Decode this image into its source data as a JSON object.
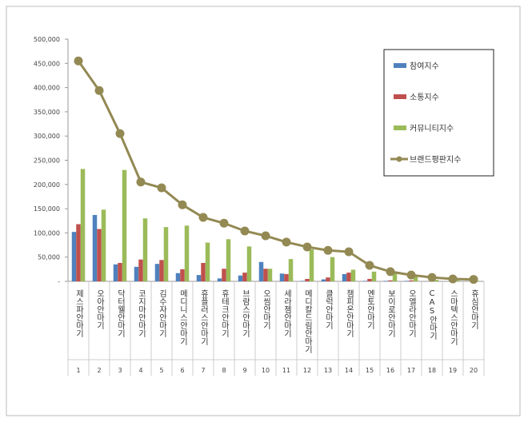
{
  "chart_data": {
    "type": "bar-line",
    "categories": [
      "제스파안마기",
      "오아안마기",
      "닥터웰안마기",
      "코지마안마기",
      "김수자안마기",
      "메디니스안마기",
      "휴플러스안마기",
      "휴테크안마기",
      "브람스안마기",
      "오씸안마기",
      "세라젬안마기",
      "메디칼드림안마기",
      "클럭안마기",
      "챔피온안마기",
      "멘토안마기",
      "보이로안마기",
      "오엘라안마기",
      "CAS안마기",
      "스마텍스안마기",
      "휴심안마기"
    ],
    "ranks": [
      1,
      2,
      3,
      4,
      5,
      6,
      7,
      8,
      9,
      10,
      11,
      12,
      13,
      14,
      15,
      16,
      17,
      18,
      19,
      20
    ],
    "series": [
      {
        "name": "참여지수",
        "color": "#4f81bd",
        "kind": "bar",
        "values": [
          102000,
          137000,
          35000,
          30000,
          36000,
          17000,
          13000,
          6000,
          12000,
          40000,
          16000,
          1000,
          4000,
          15000,
          1000,
          1000,
          1000,
          0,
          0,
          0
        ]
      },
      {
        "name": "소통지수",
        "color": "#c0504d",
        "kind": "bar",
        "values": [
          118000,
          108000,
          38000,
          45000,
          44000,
          25000,
          38000,
          26000,
          18000,
          26000,
          15000,
          5000,
          8000,
          18000,
          5000,
          2000,
          2000,
          0,
          0,
          0
        ]
      },
      {
        "name": "커뮤니티지수",
        "color": "#9bbb59",
        "kind": "bar",
        "values": [
          232000,
          148000,
          230000,
          130000,
          112000,
          115000,
          80000,
          87000,
          72000,
          26000,
          46000,
          66000,
          50000,
          24000,
          20000,
          17000,
          12000,
          3000,
          2000,
          1000
        ]
      },
      {
        "name": "브랜드평판지수",
        "color": "#938953",
        "kind": "line",
        "values": [
          455000,
          394000,
          305000,
          205000,
          193000,
          158000,
          132000,
          120000,
          104000,
          94000,
          81000,
          71000,
          64000,
          61000,
          33000,
          20000,
          13000,
          8000,
          5000,
          4000
        ]
      }
    ],
    "ylim": [
      0,
      500000
    ],
    "yticks": [
      {
        "value": 0,
        "label": "-"
      },
      {
        "value": 50000,
        "label": "50,000"
      },
      {
        "value": 100000,
        "label": "100,000"
      },
      {
        "value": 150000,
        "label": "150,000"
      },
      {
        "value": 200000,
        "label": "200,000"
      },
      {
        "value": 250000,
        "label": "250,000"
      },
      {
        "value": 300000,
        "label": "300,000"
      },
      {
        "value": 350000,
        "label": "350,000"
      },
      {
        "value": 400000,
        "label": "400,000"
      },
      {
        "value": 450000,
        "label": "450,000"
      },
      {
        "value": 500000,
        "label": "500,000"
      }
    ],
    "grid": false,
    "legend": "right"
  }
}
